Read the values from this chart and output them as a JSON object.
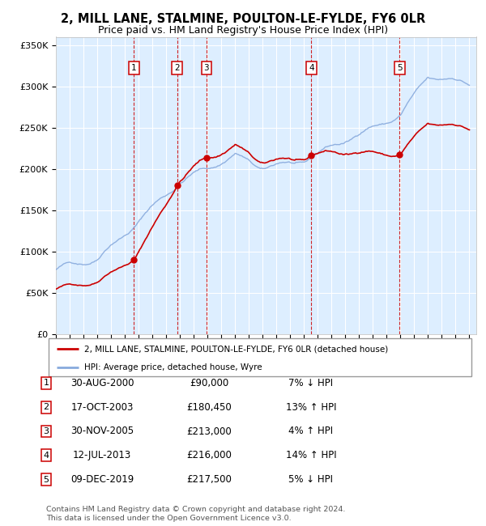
{
  "title1": "2, MILL LANE, STALMINE, POULTON-LE-FYLDE, FY6 0LR",
  "title2": "Price paid vs. HM Land Registry's House Price Index (HPI)",
  "ylim": [
    0,
    360000
  ],
  "yticks": [
    0,
    50000,
    100000,
    150000,
    200000,
    250000,
    300000,
    350000
  ],
  "ytick_labels": [
    "£0",
    "£50K",
    "£100K",
    "£150K",
    "£200K",
    "£250K",
    "£300K",
    "£350K"
  ],
  "plot_bg": "#ddeeff",
  "grid_color": "#ffffff",
  "sale_color": "#cc0000",
  "hpi_color": "#88aadd",
  "sale_label": "2, MILL LANE, STALMINE, POULTON-LE-FYLDE, FY6 0LR (detached house)",
  "hpi_label": "HPI: Average price, detached house, Wyre",
  "transactions": [
    {
      "num": 1,
      "date": "30-AUG-2000",
      "price": 90000,
      "pct": "7%",
      "dir": "↓"
    },
    {
      "num": 2,
      "date": "17-OCT-2003",
      "price": 180450,
      "pct": "13%",
      "dir": "↑"
    },
    {
      "num": 3,
      "date": "30-NOV-2005",
      "price": 213000,
      "pct": "4%",
      "dir": "↑"
    },
    {
      "num": 4,
      "date": "12-JUL-2013",
      "price": 216000,
      "pct": "14%",
      "dir": "↑"
    },
    {
      "num": 5,
      "date": "09-DEC-2019",
      "price": 217500,
      "pct": "5%",
      "dir": "↓"
    }
  ],
  "transaction_x": [
    2000.66,
    2003.79,
    2005.92,
    2013.53,
    2019.94
  ],
  "transaction_y": [
    90000,
    180450,
    213000,
    216000,
    217500
  ],
  "footer": "Contains HM Land Registry data © Crown copyright and database right 2024.\nThis data is licensed under the Open Government Licence v3.0.",
  "xmin": 1995.0,
  "xmax": 2025.5
}
